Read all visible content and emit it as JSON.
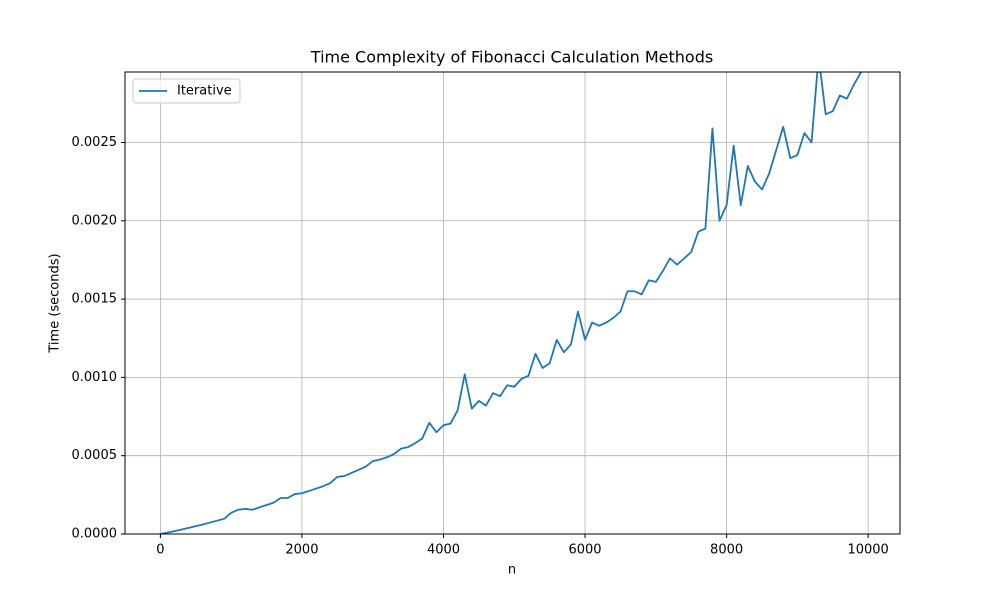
{
  "chart_data": {
    "type": "line",
    "title": "Time Complexity of Fibonacci Calculation Methods",
    "x_label": "n",
    "y_label": "Time (seconds)",
    "x": [
      0,
      100,
      200,
      300,
      400,
      500,
      600,
      700,
      800,
      900,
      1000,
      1100,
      1200,
      1300,
      1400,
      1500,
      1600,
      1700,
      1800,
      1900,
      2000,
      2100,
      2200,
      2300,
      2400,
      2500,
      2600,
      2700,
      2800,
      2900,
      3000,
      3100,
      3200,
      3300,
      3400,
      3500,
      3600,
      3700,
      3800,
      3900,
      4000,
      4100,
      4200,
      4300,
      4400,
      4500,
      4600,
      4700,
      4800,
      4900,
      5000,
      5100,
      5200,
      5300,
      5400,
      5500,
      5600,
      5700,
      5800,
      5900,
      6000,
      6100,
      6200,
      6300,
      6400,
      6500,
      6600,
      6700,
      6800,
      6900,
      7000,
      7100,
      7200,
      7300,
      7400,
      7500,
      7600,
      7700,
      7800,
      7900,
      8000,
      8100,
      8200,
      8300,
      8400,
      8500,
      8600,
      8700,
      8800,
      8900,
      9000,
      9100,
      9200,
      9300,
      9400,
      9500,
      9600,
      9700,
      9800,
      9900
    ],
    "series": [
      {
        "name": "Iterative",
        "color": "#1f77b4",
        "values": [
          0,
          9.1e-06,
          1.86e-05,
          2.86e-05,
          3.9e-05,
          5e-05,
          6.1e-05,
          7.3e-05,
          8.5e-05,
          9.7e-05,
          0.000135,
          0.000155,
          0.00016,
          0.000155,
          0.00017,
          0.000185,
          0.0002,
          0.00023,
          0.00023,
          0.000255,
          0.00026,
          0.000275,
          0.00029,
          0.000305,
          0.000325,
          0.000365,
          0.00037,
          0.00039,
          0.00041,
          0.00043,
          0.000465,
          0.000475,
          0.00049,
          0.00051,
          0.000545,
          0.000555,
          0.00058,
          0.00061,
          0.00071,
          0.00065,
          0.000695,
          0.000705,
          0.00079,
          0.00102,
          0.0008,
          0.00085,
          0.00082,
          0.0009,
          0.00088,
          0.00095,
          0.00094,
          0.00099,
          0.00101,
          0.00115,
          0.00106,
          0.00109,
          0.00124,
          0.00116,
          0.00121,
          0.00142,
          0.00124,
          0.00135,
          0.00133,
          0.00135,
          0.00138,
          0.00142,
          0.00155,
          0.00155,
          0.00153,
          0.00162,
          0.00161,
          0.00168,
          0.00176,
          0.00172,
          0.00176,
          0.0018,
          0.00193,
          0.00195,
          0.00259,
          0.002,
          0.0021,
          0.00248,
          0.0021,
          0.00235,
          0.00225,
          0.0022,
          0.0023,
          0.00245,
          0.0026,
          0.0024,
          0.00242,
          0.00256,
          0.0025,
          0.00305,
          0.00268,
          0.0027,
          0.0028,
          0.00278,
          0.00287,
          0.00295
        ]
      }
    ],
    "xlim": [
      -500,
      10450
    ],
    "ylim": [
      0,
      0.00295
    ],
    "xticks": [
      0,
      2000,
      4000,
      6000,
      8000,
      10000
    ],
    "yticks": [
      {
        "value": 0,
        "label": "0.0000"
      },
      {
        "value": 0.0005,
        "label": "0.0005"
      },
      {
        "value": 0.001,
        "label": "0.0010"
      },
      {
        "value": 0.0015,
        "label": "0.0015"
      },
      {
        "value": 0.002,
        "label": "0.0020"
      },
      {
        "value": 0.0025,
        "label": "0.0025"
      }
    ],
    "grid": true,
    "legend": "upper left"
  }
}
